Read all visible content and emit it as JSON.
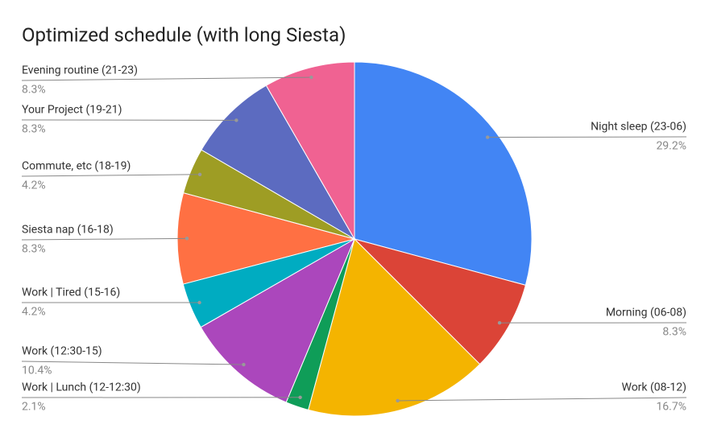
{
  "chart_data": {
    "type": "pie",
    "title": "Optimized schedule (with long Siesta)",
    "categories": [
      "Night sleep (23-06)",
      "Morning (06-08)",
      "Work (08-12)",
      "Work | Lunch (12-12:30)",
      "Work (12:30-15)",
      "Work | Tired (15-16)",
      "Siesta nap (16-18)",
      "Commute, etc (18-19)",
      "Your Project (19-21)",
      "Evening routine (21-23)"
    ],
    "values": [
      29.2,
      8.3,
      16.7,
      2.1,
      10.4,
      4.2,
      8.3,
      4.2,
      8.3,
      8.3
    ],
    "value_labels": [
      "29.2%",
      "8.3%",
      "16.7%",
      "2.1%",
      "10.4%",
      "4.2%",
      "8.3%",
      "4.2%",
      "8.3%",
      "8.3%"
    ],
    "colors": [
      "#4285f4",
      "#db4437",
      "#f4b400",
      "#0f9d58",
      "#ab47bc",
      "#00acc1",
      "#ff7043",
      "#9e9d24",
      "#5c6bc0",
      "#f06292"
    ]
  }
}
